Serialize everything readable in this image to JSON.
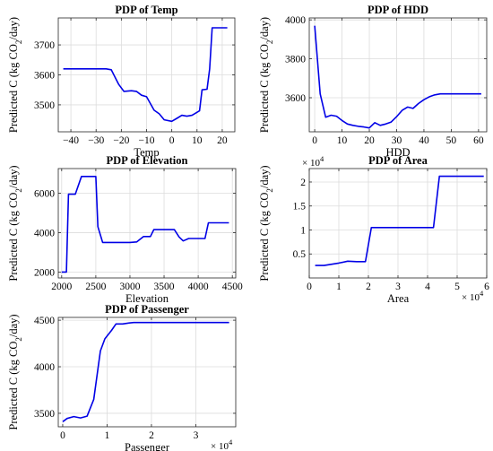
{
  "colors": {
    "line": "#0000e6",
    "grid": "#dcdcdc",
    "frame": "#262626"
  },
  "chart_data": [
    {
      "type": "line",
      "title": "PDP of Temp",
      "xlabel": "Temp",
      "ylabel": "Predicted C (kg CO_2/day)",
      "xlim": [
        -45,
        25
      ],
      "ylim": [
        3410,
        3790
      ],
      "xticks": [
        -40,
        -30,
        -20,
        -10,
        0,
        10,
        20
      ],
      "xtick_labels": [
        "−40",
        "−30",
        "−20",
        "−10",
        "0",
        "10",
        "20"
      ],
      "yticks": [
        3500,
        3600,
        3700
      ],
      "ytick_labels": [
        "3500",
        "3600",
        "3700"
      ],
      "x_exponent": "",
      "y_exponent": "",
      "grid": true,
      "series": [
        {
          "x": [
            -43,
            -37,
            -30,
            -26,
            -24,
            -21,
            -19,
            -16,
            -14,
            -12,
            -10,
            -7,
            -5,
            -3,
            0,
            2,
            4,
            6,
            8,
            9,
            11,
            12,
            14,
            15,
            16,
            22
          ],
          "y": [
            3620,
            3620,
            3620,
            3620,
            3617,
            3568,
            3545,
            3547,
            3545,
            3532,
            3527,
            3482,
            3470,
            3450,
            3445,
            3455,
            3465,
            3462,
            3465,
            3470,
            3480,
            3550,
            3552,
            3620,
            3757,
            3757
          ]
        }
      ]
    },
    {
      "type": "line",
      "title": "PDP of HDD",
      "xlabel": "HDD",
      "ylabel": "Predicted C (kg CO_2/day)",
      "xlim": [
        -2,
        63
      ],
      "ylim": [
        3425,
        4010
      ],
      "xticks": [
        0,
        10,
        20,
        30,
        40,
        50,
        60
      ],
      "xtick_labels": [
        "0",
        "10",
        "20",
        "30",
        "40",
        "50",
        "60"
      ],
      "yticks": [
        3600,
        3800,
        4000
      ],
      "ytick_labels": [
        "3600",
        "3800",
        "4000"
      ],
      "x_exponent": "",
      "y_exponent": "",
      "grid": true,
      "series": [
        {
          "x": [
            0,
            2,
            4,
            6,
            8,
            10,
            12,
            14,
            16,
            18,
            20,
            22,
            24,
            26,
            28,
            30,
            32,
            34,
            36,
            38,
            40,
            42,
            44,
            46,
            48,
            50,
            52,
            55,
            58,
            61
          ],
          "y": [
            3970,
            3620,
            3500,
            3510,
            3505,
            3483,
            3465,
            3458,
            3453,
            3450,
            3445,
            3472,
            3458,
            3465,
            3475,
            3503,
            3535,
            3552,
            3545,
            3570,
            3590,
            3605,
            3615,
            3620,
            3620,
            3620,
            3620,
            3620,
            3620,
            3620
          ]
        }
      ]
    },
    {
      "type": "line",
      "title": "PDP of Elevation",
      "xlabel": "Elevation",
      "ylabel": "Predicted C (kg CO_2/day)",
      "xlim": [
        1950,
        4550
      ],
      "ylim": [
        1700,
        7250
      ],
      "xticks": [
        2000,
        2500,
        3000,
        3500,
        4000,
        4500
      ],
      "xtick_labels": [
        "2000",
        "2500",
        "3000",
        "3500",
        "4000",
        "4500"
      ],
      "yticks": [
        2000,
        4000,
        6000
      ],
      "ytick_labels": [
        "2000",
        "4000",
        "6000"
      ],
      "x_exponent": "",
      "y_exponent": "",
      "grid": true,
      "series": [
        {
          "x": [
            2000,
            2070,
            2100,
            2200,
            2290,
            2400,
            2500,
            2530,
            2600,
            2740,
            2800,
            2900,
            3000,
            3100,
            3200,
            3300,
            3350,
            3450,
            3550,
            3650,
            3720,
            3780,
            3860,
            3950,
            4050,
            4100,
            4150,
            4450
          ],
          "y": [
            2000,
            2000,
            5950,
            5950,
            6850,
            6850,
            6850,
            4300,
            3500,
            3500,
            3500,
            3500,
            3500,
            3530,
            3800,
            3800,
            4150,
            4150,
            4150,
            4150,
            3780,
            3580,
            3700,
            3700,
            3700,
            3700,
            4500,
            4500
          ]
        }
      ]
    },
    {
      "type": "line",
      "title": "PDP of Area",
      "xlabel": "Area",
      "ylabel": "Predicted C (kg CO_2/day)",
      "xlim": [
        0,
        6
      ],
      "ylim": [
        0,
        2.28
      ],
      "xticks": [
        0,
        1,
        2,
        3,
        4,
        5,
        6
      ],
      "xtick_labels": [
        "0",
        "1",
        "2",
        "3",
        "4",
        "5",
        "6"
      ],
      "yticks": [
        0.5,
        1,
        1.5,
        2
      ],
      "ytick_labels": [
        "0.5",
        "1",
        "1.5",
        "2"
      ],
      "x_exponent": "× 10^4",
      "y_exponent": "× 10^4",
      "grid": true,
      "series": [
        {
          "x": [
            0.2,
            0.5,
            1.0,
            1.3,
            1.6,
            1.9,
            2.1,
            2.2,
            3.0,
            3.8,
            4.1,
            4.2,
            4.4,
            5.0,
            5.9
          ],
          "y": [
            0.26,
            0.26,
            0.31,
            0.35,
            0.34,
            0.34,
            1.05,
            1.05,
            1.05,
            1.05,
            1.05,
            1.05,
            2.12,
            2.12,
            2.12
          ]
        }
      ]
    },
    {
      "type": "line",
      "title": "PDP of Passenger",
      "xlabel": "Passenger",
      "ylabel": "Predicted C (kg CO_2/day)",
      "xlim": [
        -0.1,
        3.9
      ],
      "ylim": [
        3355,
        4530
      ],
      "xticks": [
        0,
        1,
        2,
        3
      ],
      "xtick_labels": [
        "0",
        "1",
        "2",
        "3"
      ],
      "yticks": [
        3500,
        4000,
        4500
      ],
      "ytick_labels": [
        "3500",
        "4000",
        "4500"
      ],
      "x_exponent": "× 10^4",
      "y_exponent": "",
      "grid": true,
      "series": [
        {
          "x": [
            0.0,
            0.1,
            0.25,
            0.4,
            0.55,
            0.7,
            0.85,
            0.95,
            1.1,
            1.2,
            1.35,
            1.5,
            1.6,
            2.0,
            3.0,
            3.75
          ],
          "y": [
            3410,
            3445,
            3465,
            3450,
            3470,
            3650,
            4170,
            4300,
            4390,
            4460,
            4460,
            4470,
            4475,
            4475,
            4475,
            4475
          ]
        }
      ]
    }
  ]
}
